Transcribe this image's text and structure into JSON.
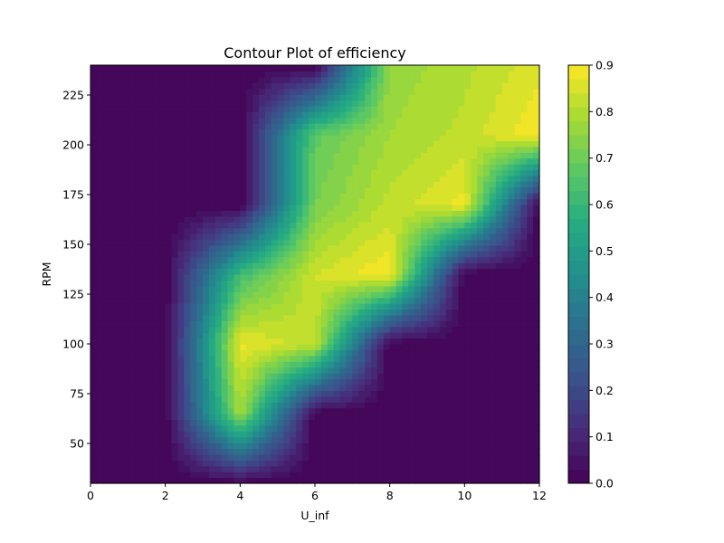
{
  "chart_data": {
    "type": "heatmap",
    "subtype": "filled-contour",
    "title": "Contour Plot of efficiency",
    "xlabel": "U_inf",
    "ylabel": "RPM",
    "xlim": [
      0,
      12
    ],
    "ylim": [
      30,
      240
    ],
    "x_ticks": [
      0,
      2,
      4,
      6,
      8,
      10,
      12
    ],
    "y_ticks": [
      50,
      75,
      100,
      125,
      150,
      175,
      200,
      225
    ],
    "x": [
      0,
      2,
      4,
      6,
      8,
      10,
      12
    ],
    "y": [
      30,
      65,
      100,
      135,
      170,
      205,
      240
    ],
    "z": [
      [
        0,
        0,
        0,
        0,
        0,
        0,
        0
      ],
      [
        0,
        0,
        0.78,
        0,
        0,
        0,
        0
      ],
      [
        0,
        0,
        0.88,
        0.82,
        0,
        0,
        0
      ],
      [
        0,
        0,
        0.62,
        0.84,
        0.9,
        0,
        0
      ],
      [
        0,
        0,
        0,
        0.72,
        0.82,
        0.88,
        0
      ],
      [
        0,
        0,
        0,
        0.68,
        0.78,
        0.82,
        0.9
      ],
      [
        0,
        0,
        0,
        0,
        0.76,
        0.8,
        0.86
      ]
    ],
    "colorbar": {
      "min": 0,
      "max": 0.9,
      "ticks": [
        0.0,
        0.1,
        0.2,
        0.3,
        0.4,
        0.5,
        0.6,
        0.7,
        0.8,
        0.9
      ],
      "tick_labels": [
        "0.0",
        "0.1",
        "0.2",
        "0.3",
        "0.4",
        "0.5",
        "0.6",
        "0.7",
        "0.8",
        "0.9"
      ],
      "colormap": "viridis",
      "levels": 30
    }
  }
}
